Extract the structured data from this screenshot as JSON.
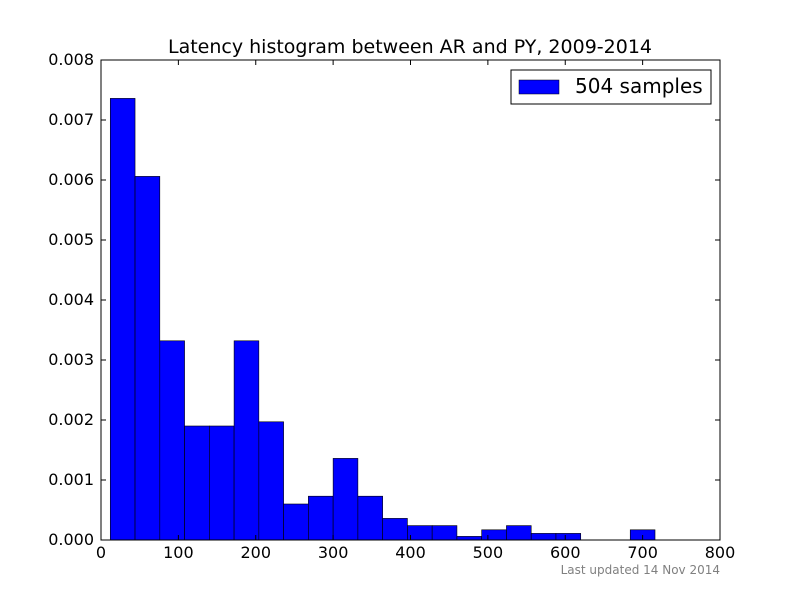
{
  "chart_data": {
    "type": "bar",
    "title": "Latency histogram between AR and PY, 2009-2014",
    "xlabel": "",
    "ylabel": "",
    "xlim": [
      0,
      800
    ],
    "ylim": [
      0,
      0.008
    ],
    "x_ticks": [
      "0",
      "100",
      "200",
      "300",
      "400",
      "500",
      "600",
      "700",
      "800"
    ],
    "y_ticks": [
      "0.000",
      "0.001",
      "0.002",
      "0.003",
      "0.004",
      "0.005",
      "0.006",
      "0.007",
      "0.008"
    ],
    "grid": false,
    "legend_position": "top-right",
    "series": [
      {
        "name": "504 samples",
        "color": "#0000ff",
        "bins": [
          {
            "x0": 12,
            "x1": 44,
            "value": 0.00736
          },
          {
            "x0": 44,
            "x1": 76,
            "value": 0.00606
          },
          {
            "x0": 76,
            "x1": 108,
            "value": 0.00332
          },
          {
            "x0": 108,
            "x1": 140,
            "value": 0.0019
          },
          {
            "x0": 140,
            "x1": 172,
            "value": 0.0019
          },
          {
            "x0": 172,
            "x1": 204,
            "value": 0.00332
          },
          {
            "x0": 204,
            "x1": 236,
            "value": 0.00197
          },
          {
            "x0": 236,
            "x1": 268,
            "value": 0.0006
          },
          {
            "x0": 268,
            "x1": 300,
            "value": 0.00073
          },
          {
            "x0": 300,
            "x1": 332,
            "value": 0.00136
          },
          {
            "x0": 332,
            "x1": 364,
            "value": 0.00073
          },
          {
            "x0": 364,
            "x1": 396,
            "value": 0.00036
          },
          {
            "x0": 396,
            "x1": 428,
            "value": 0.00024
          },
          {
            "x0": 428,
            "x1": 460,
            "value": 0.00024
          },
          {
            "x0": 460,
            "x1": 492,
            "value": 6e-05
          },
          {
            "x0": 492,
            "x1": 524,
            "value": 0.00017
          },
          {
            "x0": 524,
            "x1": 556,
            "value": 0.00024
          },
          {
            "x0": 556,
            "x1": 588,
            "value": 0.00011
          },
          {
            "x0": 588,
            "x1": 620,
            "value": 0.00011
          },
          {
            "x0": 620,
            "x1": 652,
            "value": 0
          },
          {
            "x0": 652,
            "x1": 684,
            "value": 0
          },
          {
            "x0": 684,
            "x1": 716,
            "value": 0.00017
          }
        ]
      }
    ]
  },
  "footer": {
    "updated_text": "Last updated 14 Nov 2014"
  }
}
